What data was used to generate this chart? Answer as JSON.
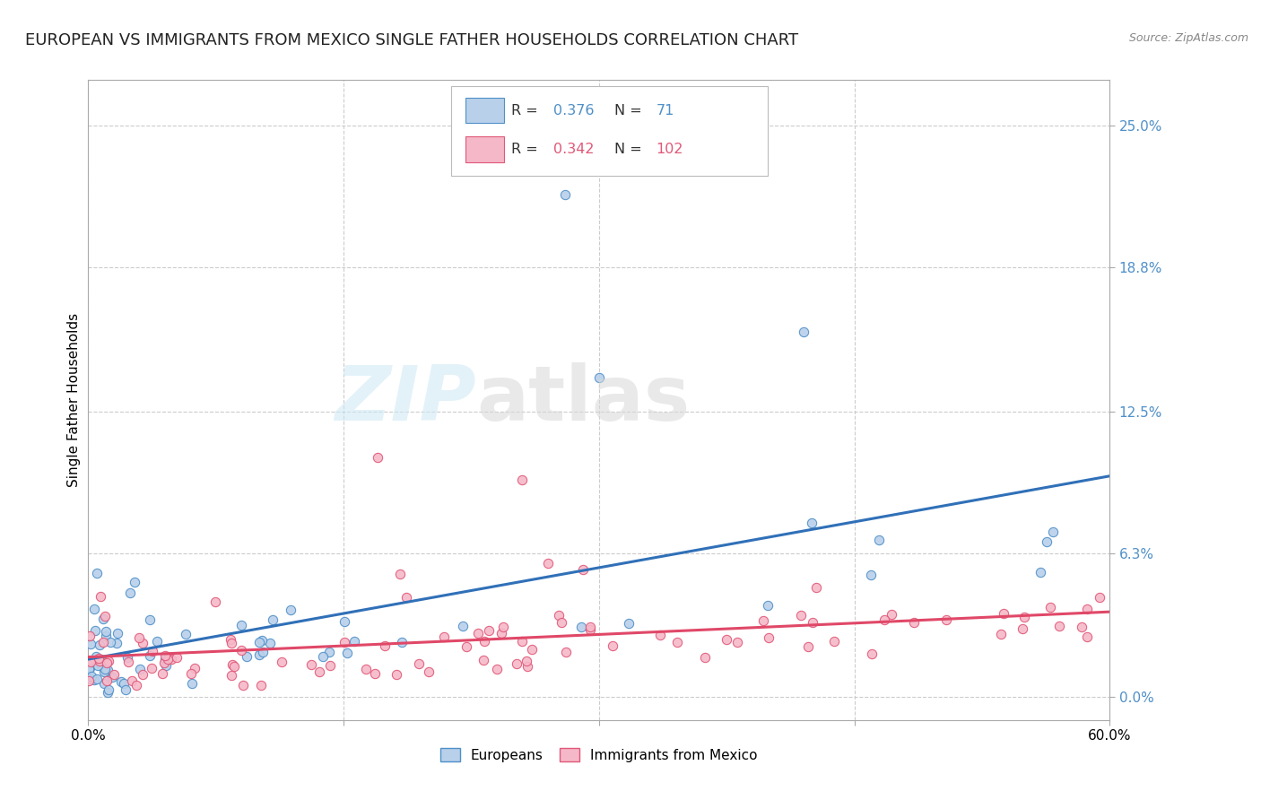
{
  "title": "EUROPEAN VS IMMIGRANTS FROM MEXICO SINGLE FATHER HOUSEHOLDS CORRELATION CHART",
  "source": "Source: ZipAtlas.com",
  "ylabel": "Single Father Households",
  "ytick_values": [
    0.0,
    6.3,
    12.5,
    18.8,
    25.0
  ],
  "xlim": [
    0.0,
    60.0
  ],
  "ylim": [
    -1.0,
    27.0
  ],
  "legend_r_blue": "0.376",
  "legend_n_blue": "71",
  "legend_r_pink": "0.342",
  "legend_n_pink": "102",
  "color_blue_fill": "#b8d0ea",
  "color_pink_fill": "#f5b8c8",
  "color_blue_edge": "#5090c8",
  "color_pink_edge": "#e05878",
  "color_blue_line": "#3070b8",
  "color_pink_line": "#e04868",
  "color_blue_text": "#5090c8",
  "color_pink_text": "#e05878",
  "grid_color": "#cccccc",
  "title_fontsize": 13,
  "label_fontsize": 11,
  "tick_fontsize": 11
}
